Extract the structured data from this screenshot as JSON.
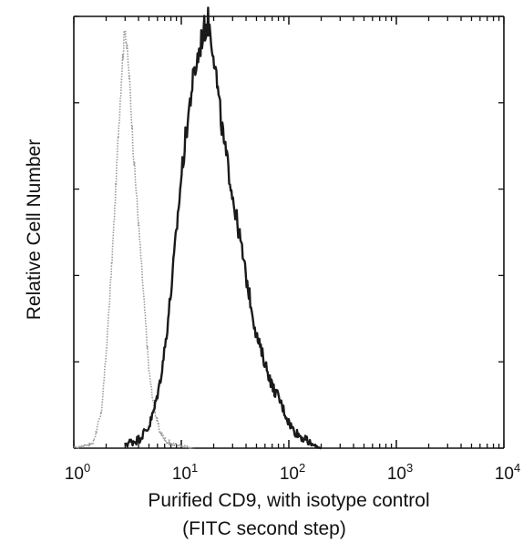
{
  "chart_data": {
    "type": "line",
    "title": "",
    "xlabel": "Purified CD9, with isotype control",
    "xlabel_line2": "(FITC second step)",
    "ylabel": "Relative Cell Number",
    "x_scale": "log",
    "xlim": [
      1,
      10000
    ],
    "ylim": [
      0,
      100
    ],
    "x_ticks": [
      1,
      10,
      100,
      1000,
      10000
    ],
    "x_tick_labels": [
      {
        "base": "10",
        "exp": "0"
      },
      {
        "base": "10",
        "exp": "1"
      },
      {
        "base": "10",
        "exp": "2"
      },
      {
        "base": "10",
        "exp": "3"
      },
      {
        "base": "10",
        "exp": "4"
      }
    ],
    "grid": false,
    "legend": "none",
    "series": [
      {
        "style": "dotted",
        "color": "#9a9a9a",
        "x": [
          1.0,
          1.5,
          1.8,
          2.0,
          2.2,
          2.4,
          2.6,
          2.8,
          3.0,
          3.3,
          3.6,
          4.0,
          4.5,
          5.0,
          5.6,
          6.3,
          7.0,
          8.0,
          10.0,
          13.0
        ],
        "y": [
          0,
          1,
          8,
          22,
          38,
          55,
          73,
          88,
          98,
          85,
          68,
          52,
          34,
          18,
          9,
          4,
          2,
          1,
          0.5,
          0
        ]
      },
      {
        "style": "solid",
        "color": "#1a1a1a",
        "x": [
          3.0,
          4.0,
          5.0,
          5.6,
          6.3,
          7.1,
          8.0,
          9.0,
          10.0,
          11.2,
          12.6,
          14.1,
          15.8,
          17.8,
          20.0,
          22.4,
          25.1,
          28.2,
          31.6,
          35.5,
          39.8,
          44.7,
          50.1,
          56.2,
          63.1,
          70.8,
          79.4,
          89.1,
          100,
          112,
          126,
          141,
          158,
          200
        ],
        "y": [
          1,
          2,
          5,
          9,
          15,
          24,
          36,
          50,
          63,
          74,
          84,
          90,
          96,
          99,
          92,
          80,
          70,
          63,
          55,
          48,
          40,
          33,
          26,
          22,
          18,
          14,
          12,
          9,
          6,
          4,
          3,
          2,
          1,
          0
        ]
      }
    ]
  }
}
